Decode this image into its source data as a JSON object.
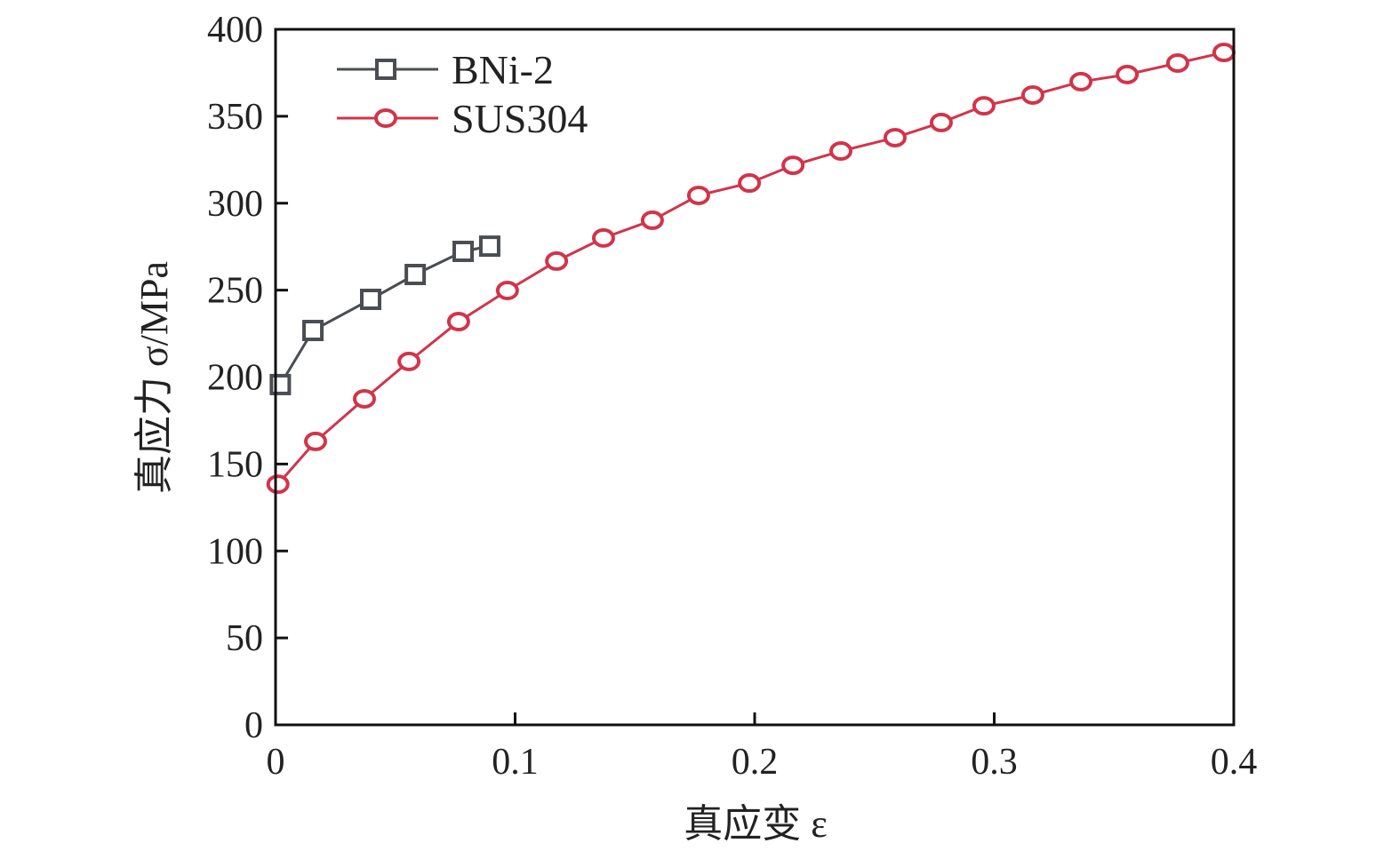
{
  "chart_data": {
    "type": "line",
    "title": "",
    "xlabel": "真应变 ε",
    "ylabel": "真应力 σ/MPa",
    "xlim": [
      0,
      0.4
    ],
    "ylim": [
      0,
      400
    ],
    "xticks": [
      0,
      0.1,
      0.2,
      0.3,
      0.4
    ],
    "xtick_labels": [
      "0",
      "0.1",
      "0.2",
      "0.3",
      "0.4"
    ],
    "yticks": [
      0,
      50,
      100,
      150,
      200,
      250,
      300,
      350,
      400
    ],
    "ytick_labels": [
      "0",
      "50",
      "100",
      "150",
      "200",
      "250",
      "300",
      "350",
      "400"
    ],
    "grid": false,
    "legend_position": "top-left",
    "series": [
      {
        "name": "BNi-2",
        "color": "#4a4d52",
        "marker": "square",
        "x": [
          0.002,
          0.0156,
          0.0397,
          0.0583,
          0.0783,
          0.0894
        ],
        "y": [
          195.7,
          226.8,
          244.7,
          259.0,
          272.3,
          275.3
        ]
      },
      {
        "name": "SUS304",
        "color": "#d2344a",
        "marker": "circle",
        "x": [
          0.001,
          0.0167,
          0.0371,
          0.0557,
          0.0764,
          0.0968,
          0.1173,
          0.1369,
          0.1573,
          0.1766,
          0.1978,
          0.216,
          0.236,
          0.2586,
          0.2779,
          0.2957,
          0.3161,
          0.3362,
          0.3555,
          0.3766,
          0.3959
        ],
        "y": [
          138.4,
          163.0,
          187.5,
          209.0,
          231.9,
          249.8,
          266.7,
          280.0,
          290.2,
          304.5,
          311.6,
          321.8,
          330.0,
          337.7,
          346.4,
          356.0,
          362.2,
          369.9,
          374.0,
          380.6,
          386.7
        ]
      }
    ]
  }
}
